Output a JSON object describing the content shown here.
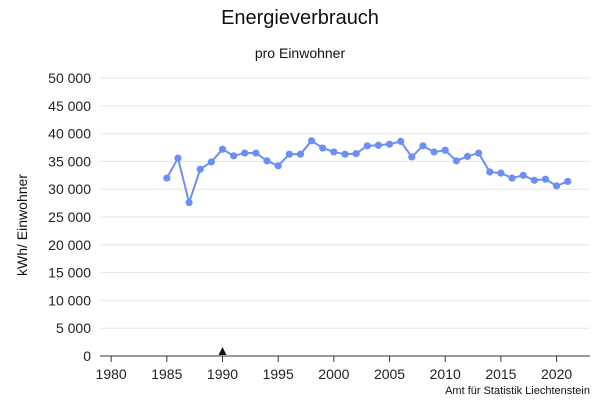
{
  "chart_data": {
    "type": "line",
    "title": "Energieverbrauch",
    "subtitle": "pro Einwohner",
    "ylabel": "kWh/ Einwohner",
    "xlabel": "",
    "xlim": [
      1979,
      2023
    ],
    "ylim": [
      0,
      50000
    ],
    "x_ticks": [
      1980,
      1985,
      1990,
      1995,
      2000,
      2005,
      2010,
      2015,
      2020
    ],
    "y_ticks": [
      {
        "value": 0,
        "label": "0"
      },
      {
        "value": 5000,
        "label": "5 000"
      },
      {
        "value": 10000,
        "label": "10 000"
      },
      {
        "value": 15000,
        "label": "15 000"
      },
      {
        "value": 20000,
        "label": "20 000"
      },
      {
        "value": 25000,
        "label": "25 000"
      },
      {
        "value": 30000,
        "label": "30 000"
      },
      {
        "value": 35000,
        "label": "35 000"
      },
      {
        "value": 40000,
        "label": "40 000"
      },
      {
        "value": 45000,
        "label": "45 000"
      },
      {
        "value": 50000,
        "label": "50 000"
      }
    ],
    "grid": "horizontal",
    "marker_year": 1990,
    "series": [
      {
        "color": "#6b8ff5",
        "x": [
          1985,
          1986,
          1987,
          1988,
          1989,
          1990,
          1991,
          1992,
          1993,
          1994,
          1995,
          1996,
          1997,
          1998,
          1999,
          2000,
          2001,
          2002,
          2003,
          2004,
          2005,
          2006,
          2007,
          2008,
          2009,
          2010,
          2011,
          2012,
          2013,
          2014,
          2015,
          2016,
          2017,
          2018,
          2019,
          2020,
          2021
        ],
        "values": [
          32000,
          35600,
          27600,
          33600,
          34900,
          37200,
          36000,
          36500,
          36500,
          35100,
          34200,
          36300,
          36300,
          38700,
          37400,
          36700,
          36300,
          36400,
          37800,
          37900,
          38100,
          38600,
          35800,
          37800,
          36700,
          37000,
          35100,
          35900,
          36500,
          33100,
          32900,
          32000,
          32500,
          31600,
          31800,
          30600,
          31400
        ]
      }
    ]
  },
  "source_note": "Amt für Statistik Liechtenstein"
}
